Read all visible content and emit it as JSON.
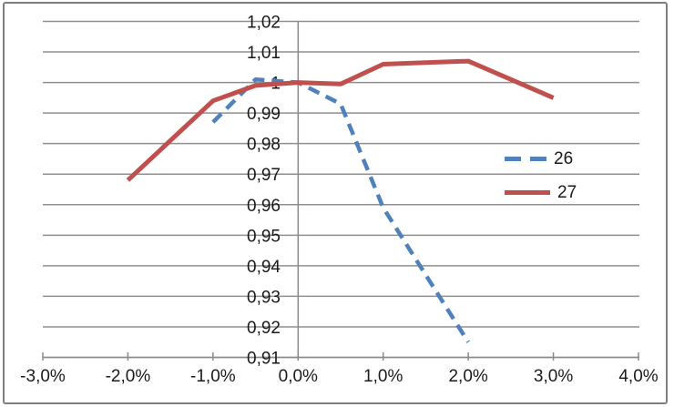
{
  "window": {
    "background_color": "#ffffff",
    "border_color": "#7e7e7e"
  },
  "chart_data": {
    "type": "line",
    "title": "",
    "xlabel": "",
    "ylabel": "",
    "grid": true,
    "legend_position": "middle-right",
    "xlim": [
      -3,
      4
    ],
    "ylim": [
      0.91,
      1.02
    ],
    "x_ticks": [
      {
        "value": -3,
        "label": "-3,0%"
      },
      {
        "value": -2,
        "label": "-2,0%"
      },
      {
        "value": -1,
        "label": "-1,0%"
      },
      {
        "value": 0,
        "label": "0,0%"
      },
      {
        "value": 1,
        "label": "1,0%"
      },
      {
        "value": 2,
        "label": "2,0%"
      },
      {
        "value": 3,
        "label": "3,0%"
      },
      {
        "value": 4,
        "label": "4,0%"
      }
    ],
    "y_ticks": [
      {
        "value": 1.02,
        "label": "1,02"
      },
      {
        "value": 1.01,
        "label": "1,01"
      },
      {
        "value": 1.0,
        "label": "1"
      },
      {
        "value": 0.99,
        "label": "0,99"
      },
      {
        "value": 0.98,
        "label": "0,98"
      },
      {
        "value": 0.97,
        "label": "0,97"
      },
      {
        "value": 0.96,
        "label": "0,96"
      },
      {
        "value": 0.95,
        "label": "0,95"
      },
      {
        "value": 0.94,
        "label": "0,94"
      },
      {
        "value": 0.93,
        "label": "0,93"
      },
      {
        "value": 0.92,
        "label": "0,92"
      },
      {
        "value": 0.91,
        "label": "0,91"
      }
    ],
    "grid_color": "#8f8f8f",
    "axis_color": "#8a8a8a",
    "text_color": "#1a1a1a",
    "series": [
      {
        "name": "26",
        "color": "#4f81bd",
        "line_style": "dashed",
        "points": [
          [
            -1,
            0.987
          ],
          [
            -0.5,
            1.001
          ],
          [
            0,
            1.0
          ],
          [
            0.5,
            0.993
          ],
          [
            1,
            0.959
          ],
          [
            1.5,
            0.937
          ],
          [
            2,
            0.915
          ]
        ]
      },
      {
        "name": "27",
        "color": "#c0504d",
        "line_style": "solid",
        "points": [
          [
            -2,
            0.968
          ],
          [
            -1,
            0.994
          ],
          [
            -0.5,
            0.999
          ],
          [
            0,
            1.0
          ],
          [
            0.5,
            0.9995
          ],
          [
            1,
            1.006
          ],
          [
            1.5,
            1.0065
          ],
          [
            2,
            1.007
          ],
          [
            3,
            0.995
          ]
        ]
      }
    ]
  }
}
